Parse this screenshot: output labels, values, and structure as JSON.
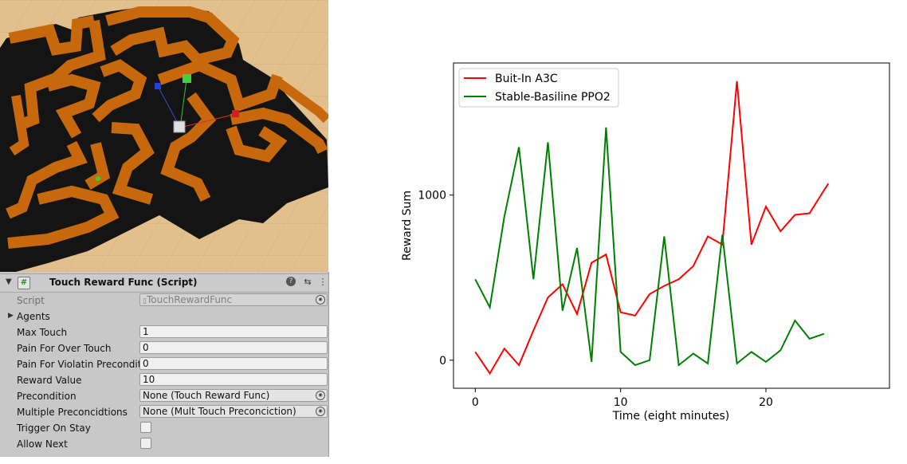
{
  "scene": {
    "floor_color": "#e2c08e",
    "wall_top_color": "#c8680c",
    "wall_side_color": "#111111"
  },
  "inspector": {
    "component_title": "Touch Reward Func (Script)",
    "script_icon": "#",
    "fields": {
      "script": {
        "label": "Script",
        "value": "TouchRewardFunc"
      },
      "agents": {
        "label": "Agents"
      },
      "max_touch": {
        "label": "Max Touch",
        "value": "1"
      },
      "pain_over_touch": {
        "label": "Pain For Over Touch",
        "value": "0"
      },
      "pain_violate": {
        "label": "Pain For Violatin Preconditio",
        "value": "0"
      },
      "reward_value": {
        "label": "Reward Value",
        "value": "10"
      },
      "precondition": {
        "label": "Precondition",
        "value": "None (Touch Reward Func)"
      },
      "multiple_preconditions": {
        "label": "Multiple Preconcidtions",
        "value": "None (Mult Touch Preconciction)"
      },
      "trigger_on_stay": {
        "label": "Trigger On Stay",
        "checked": false
      },
      "allow_next": {
        "label": "Allow Next",
        "checked": false
      }
    }
  },
  "chart_data": {
    "type": "line",
    "title": "",
    "xlabel": "Time (eight minutes)",
    "ylabel": "Reward Sum",
    "xlim": [
      -1.5,
      28.5
    ],
    "ylim": [
      -170,
      1800
    ],
    "xticks": [
      0,
      10,
      20
    ],
    "yticks": [
      0,
      1000
    ],
    "legend_position": "top-left",
    "series": [
      {
        "name": "Buit-In A3C",
        "color": "#ff0000",
        "x": [
          0,
          1,
          2,
          3,
          4,
          5,
          6,
          7,
          8,
          9,
          10,
          11,
          12,
          13,
          14,
          15,
          16,
          17,
          18,
          19,
          20,
          21,
          22,
          23,
          24,
          24.3
        ],
        "y": [
          50,
          -80,
          70,
          -30,
          180,
          380,
          460,
          280,
          590,
          640,
          290,
          270,
          400,
          450,
          490,
          570,
          750,
          700,
          1690,
          700,
          930,
          780,
          880,
          890,
          1030,
          1070
        ]
      },
      {
        "name": "Stable-Basiline PPO2",
        "color": "#008000",
        "x": [
          0,
          1,
          2,
          3,
          4,
          5,
          6,
          7,
          8,
          9,
          10,
          11,
          12,
          13,
          14,
          15,
          16,
          17,
          18,
          19,
          20,
          21,
          22,
          23,
          24
        ],
        "y": [
          490,
          320,
          870,
          1290,
          490,
          1320,
          300,
          680,
          -10,
          1410,
          50,
          -30,
          0,
          750,
          -30,
          40,
          -20,
          760,
          -20,
          50,
          -10,
          60,
          240,
          130,
          160
        ]
      }
    ]
  }
}
